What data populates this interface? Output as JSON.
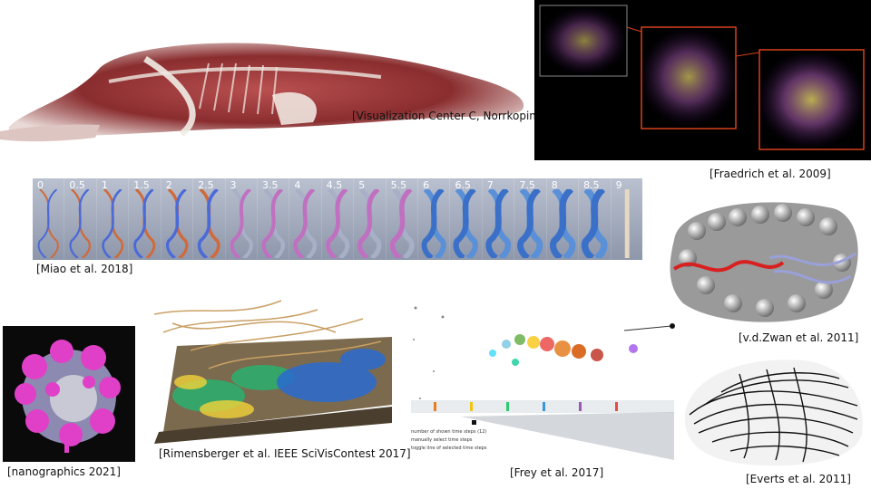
{
  "captions": {
    "norrkoping": "[Visualization Center C, Norrkoping]",
    "fraedrich": "[Fraedrich et al. 2009]",
    "miao": "[Miao et al. 2018]",
    "zwan": "[v.d.Zwan et al. 2011]",
    "nanographics": "[nanographics 2021]",
    "rimensberger": "[Rimensberger et al. IEEE SciVisContest 2017]",
    "frey": "[Frey et al. 2017]",
    "everts": "[Everts et al. 2011]"
  },
  "dna_levels": [
    "0",
    "0.5",
    "1",
    "1.5",
    "2",
    "2.5",
    "3",
    "3.5",
    "4",
    "4.5",
    "5",
    "5.5",
    "6",
    "6.5",
    "7",
    "7.5",
    "8",
    "8.5",
    "9"
  ],
  "frey_panel": {
    "line1": "number of shown time steps (12)",
    "line2": "manually select time steps",
    "line3": "toggle line of selected time steps"
  },
  "colors": {
    "dark_bg": "#000000",
    "nano_pink": "#e040c8",
    "fraedrich_frame": "#d8401c"
  }
}
